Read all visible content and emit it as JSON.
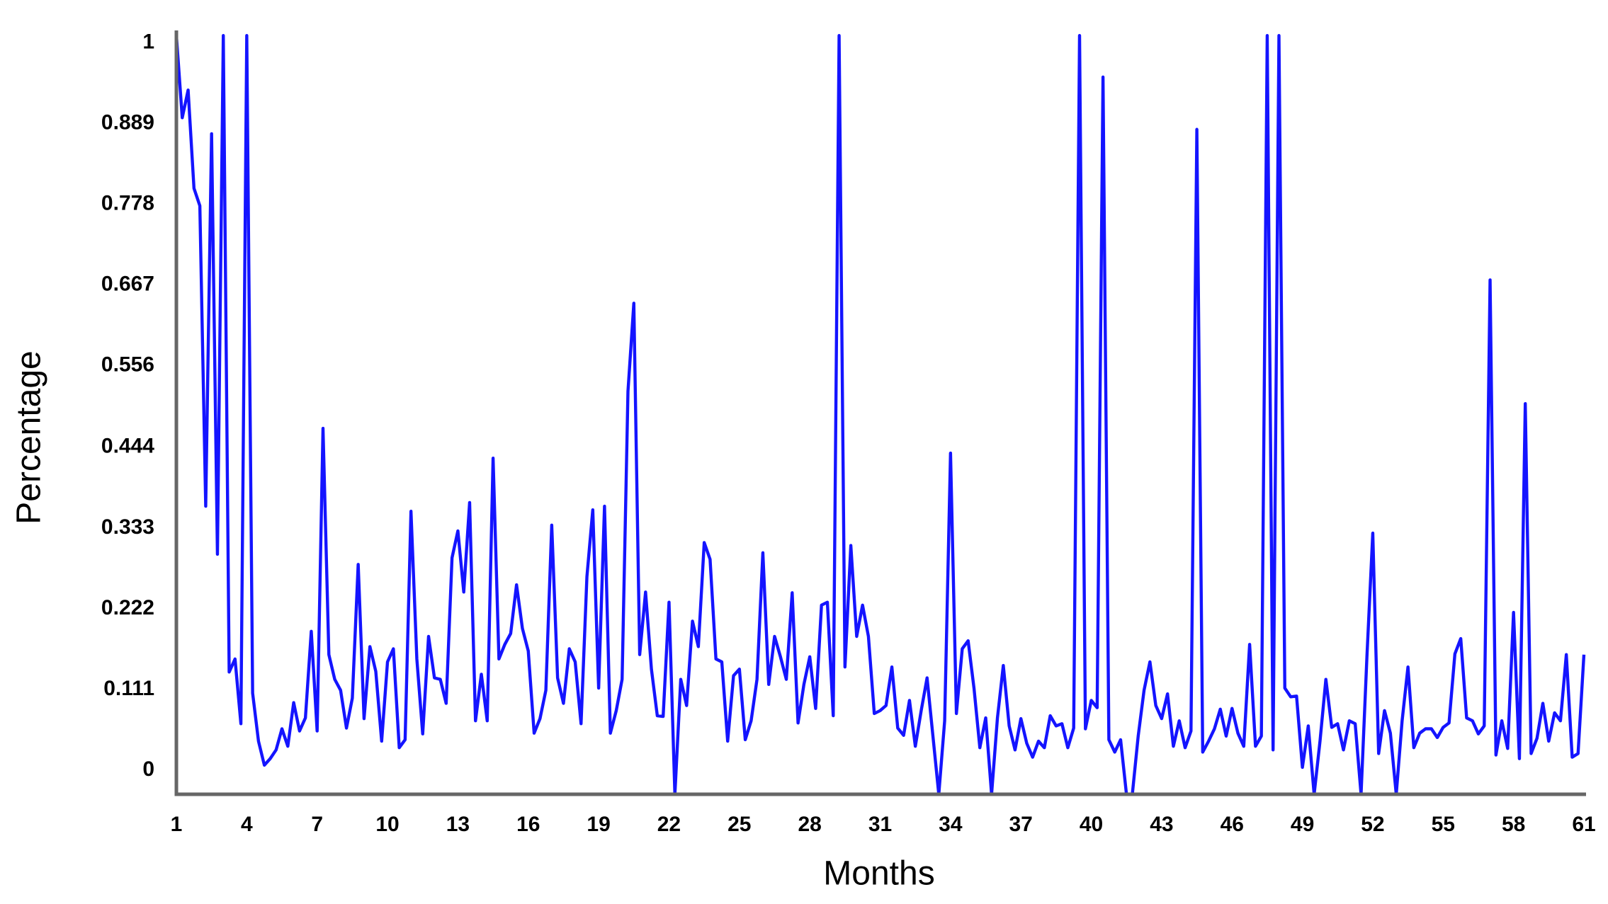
{
  "chart_data": {
    "type": "line",
    "x_label": "Months",
    "y_label": "Percentage",
    "color": "#1414ff",
    "xlim": [
      1,
      61
    ],
    "ylim": [
      -0.033,
      1.017
    ],
    "xticks": [
      1,
      4,
      7,
      10,
      13,
      16,
      19,
      22,
      25,
      28,
      31,
      34,
      37,
      40,
      43,
      46,
      49,
      52,
      55,
      58,
      61
    ],
    "yticks": [
      0,
      0.111,
      0.222,
      0.333,
      0.444,
      0.556,
      0.667,
      0.778,
      0.889,
      1
    ],
    "grid": false,
    "x": [
      1,
      1.25,
      1.5,
      1.75,
      2,
      2.25,
      2.5,
      2.75,
      3,
      3.25,
      3.5,
      3.75,
      4,
      4.25,
      4.5,
      4.75,
      5,
      5.25,
      5.5,
      5.75,
      6,
      6.25,
      6.5,
      6.75,
      7,
      7.25,
      7.5,
      7.75,
      8,
      8.25,
      8.5,
      8.75,
      9,
      9.25,
      9.5,
      9.75,
      10,
      10.25,
      10.5,
      10.75,
      11,
      11.25,
      11.5,
      11.75,
      12,
      12.25,
      12.5,
      12.75,
      13,
      13.25,
      13.5,
      13.75,
      14,
      14.25,
      14.5,
      14.75,
      15,
      15.25,
      15.5,
      15.75,
      16,
      16.25,
      16.5,
      16.75,
      17,
      17.25,
      17.5,
      17.75,
      18,
      18.25,
      18.5,
      18.75,
      19,
      19.25,
      19.5,
      19.75,
      20,
      20.25,
      20.5,
      20.75,
      21,
      21.25,
      21.5,
      21.75,
      22,
      22.25,
      22.5,
      22.75,
      23,
      23.25,
      23.5,
      23.75,
      24,
      24.25,
      24.5,
      24.75,
      25,
      25.25,
      25.5,
      25.75,
      26,
      26.25,
      26.5,
      26.75,
      27,
      27.25,
      27.5,
      27.75,
      28,
      28.25,
      28.5,
      28.75,
      29,
      29.25,
      29.5,
      29.75,
      30,
      30.25,
      30.5,
      30.75,
      31,
      31.25,
      31.5,
      31.75,
      32,
      32.25,
      32.5,
      32.75,
      33,
      33.25,
      33.5,
      33.75,
      34,
      34.25,
      34.5,
      34.75,
      35,
      35.25,
      35.5,
      35.75,
      36,
      36.25,
      36.5,
      36.75,
      37,
      37.25,
      37.5,
      37.75,
      38,
      38.25,
      38.5,
      38.75,
      39,
      39.25,
      39.5,
      39.75,
      40,
      40.25,
      40.5,
      40.75,
      41,
      41.25,
      41.5,
      41.75,
      42,
      42.25,
      42.5,
      42.75,
      43,
      43.25,
      43.5,
      43.75,
      44,
      44.25,
      44.5,
      44.75,
      45,
      45.25,
      45.5,
      45.75,
      46,
      46.25,
      46.5,
      46.75,
      47,
      47.25,
      47.5,
      47.75,
      48,
      48.25,
      48.5,
      48.75,
      49,
      49.25,
      49.5,
      49.75,
      50,
      50.25,
      50.5,
      50.75,
      51,
      51.25,
      51.5,
      51.75,
      52,
      52.25,
      52.5,
      52.75,
      53,
      53.25,
      53.5,
      53.75,
      54,
      54.25,
      54.5,
      54.75,
      55,
      55.25,
      55.5,
      55.75,
      56,
      56.25,
      56.5,
      56.75,
      57,
      57.25,
      57.5,
      57.75,
      58,
      58.25,
      58.5,
      58.75,
      59,
      59.25,
      59.5,
      59.75,
      60,
      60.25,
      60.5,
      60.75,
      61
    ],
    "values": [
      1.01,
      0.897,
      0.935,
      0.8,
      0.776,
      0.363,
      0.875,
      0.297,
      1.01,
      0.135,
      0.153,
      0.064,
      1.01,
      0.106,
      0.04,
      0.007,
      0.016,
      0.028,
      0.057,
      0.033,
      0.093,
      0.054,
      0.072,
      0.191,
      0.054,
      0.47,
      0.159,
      0.125,
      0.11,
      0.058,
      0.099,
      0.283,
      0.071,
      0.17,
      0.136,
      0.04,
      0.149,
      0.167,
      0.031,
      0.042,
      0.356,
      0.153,
      0.05,
      0.184,
      0.127,
      0.125,
      0.092,
      0.292,
      0.329,
      0.245,
      0.368,
      0.068,
      0.132,
      0.068,
      0.429,
      0.153,
      0.173,
      0.188,
      0.255,
      0.195,
      0.164,
      0.051,
      0.071,
      0.11,
      0.337,
      0.127,
      0.092,
      0.167,
      0.149,
      0.064,
      0.266,
      0.358,
      0.113,
      0.363,
      0.051,
      0.082,
      0.125,
      0.521,
      0.642,
      0.159,
      0.245,
      0.139,
      0.075,
      0.074,
      0.231,
      -0.033,
      0.125,
      0.089,
      0.205,
      0.17,
      0.313,
      0.29,
      0.153,
      0.149,
      0.04,
      0.13,
      0.139,
      0.042,
      0.068,
      0.125,
      0.299,
      0.118,
      0.184,
      0.156,
      0.125,
      0.244,
      0.065,
      0.118,
      0.156,
      0.085,
      0.227,
      0.231,
      0.075,
      1.01,
      0.142,
      0.309,
      0.184,
      0.227,
      0.184,
      0.078,
      0.082,
      0.089,
      0.142,
      0.058,
      0.048,
      0.096,
      0.033,
      0.082,
      0.127,
      0.047,
      -0.033,
      0.068,
      0.436,
      0.078,
      0.167,
      0.178,
      0.113,
      0.031,
      0.072,
      -0.033,
      0.072,
      0.144,
      0.061,
      0.028,
      0.071,
      0.037,
      0.018,
      0.04,
      0.031,
      0.075,
      0.061,
      0.064,
      0.031,
      0.058,
      1.01,
      0.057,
      0.096,
      0.086,
      0.953,
      0.042,
      0.025,
      0.042,
      -0.033,
      -0.033,
      0.047,
      0.11,
      0.149,
      0.089,
      0.071,
      0.105,
      0.033,
      0.068,
      0.031,
      0.054,
      0.881,
      0.025,
      0.04,
      0.057,
      0.084,
      0.047,
      0.085,
      0.051,
      0.033,
      0.173,
      0.033,
      0.047,
      1.01,
      0.028,
      1.01,
      0.113,
      0.101,
      0.102,
      0.004,
      0.061,
      -0.033,
      0.04,
      0.125,
      0.059,
      0.064,
      0.028,
      0.068,
      0.064,
      -0.033,
      0.156,
      0.326,
      0.023,
      0.082,
      0.051,
      -0.033,
      0.068,
      0.142,
      0.031,
      0.051,
      0.057,
      0.057,
      0.045,
      0.059,
      0.065,
      0.16,
      0.181,
      0.072,
      0.068,
      0.05,
      0.061,
      0.674,
      0.021,
      0.068,
      0.03,
      0.217,
      0.016,
      0.504,
      0.023,
      0.044,
      0.092,
      0.04,
      0.079,
      0.068,
      0.159,
      0.018,
      0.023,
      0.159
    ]
  }
}
